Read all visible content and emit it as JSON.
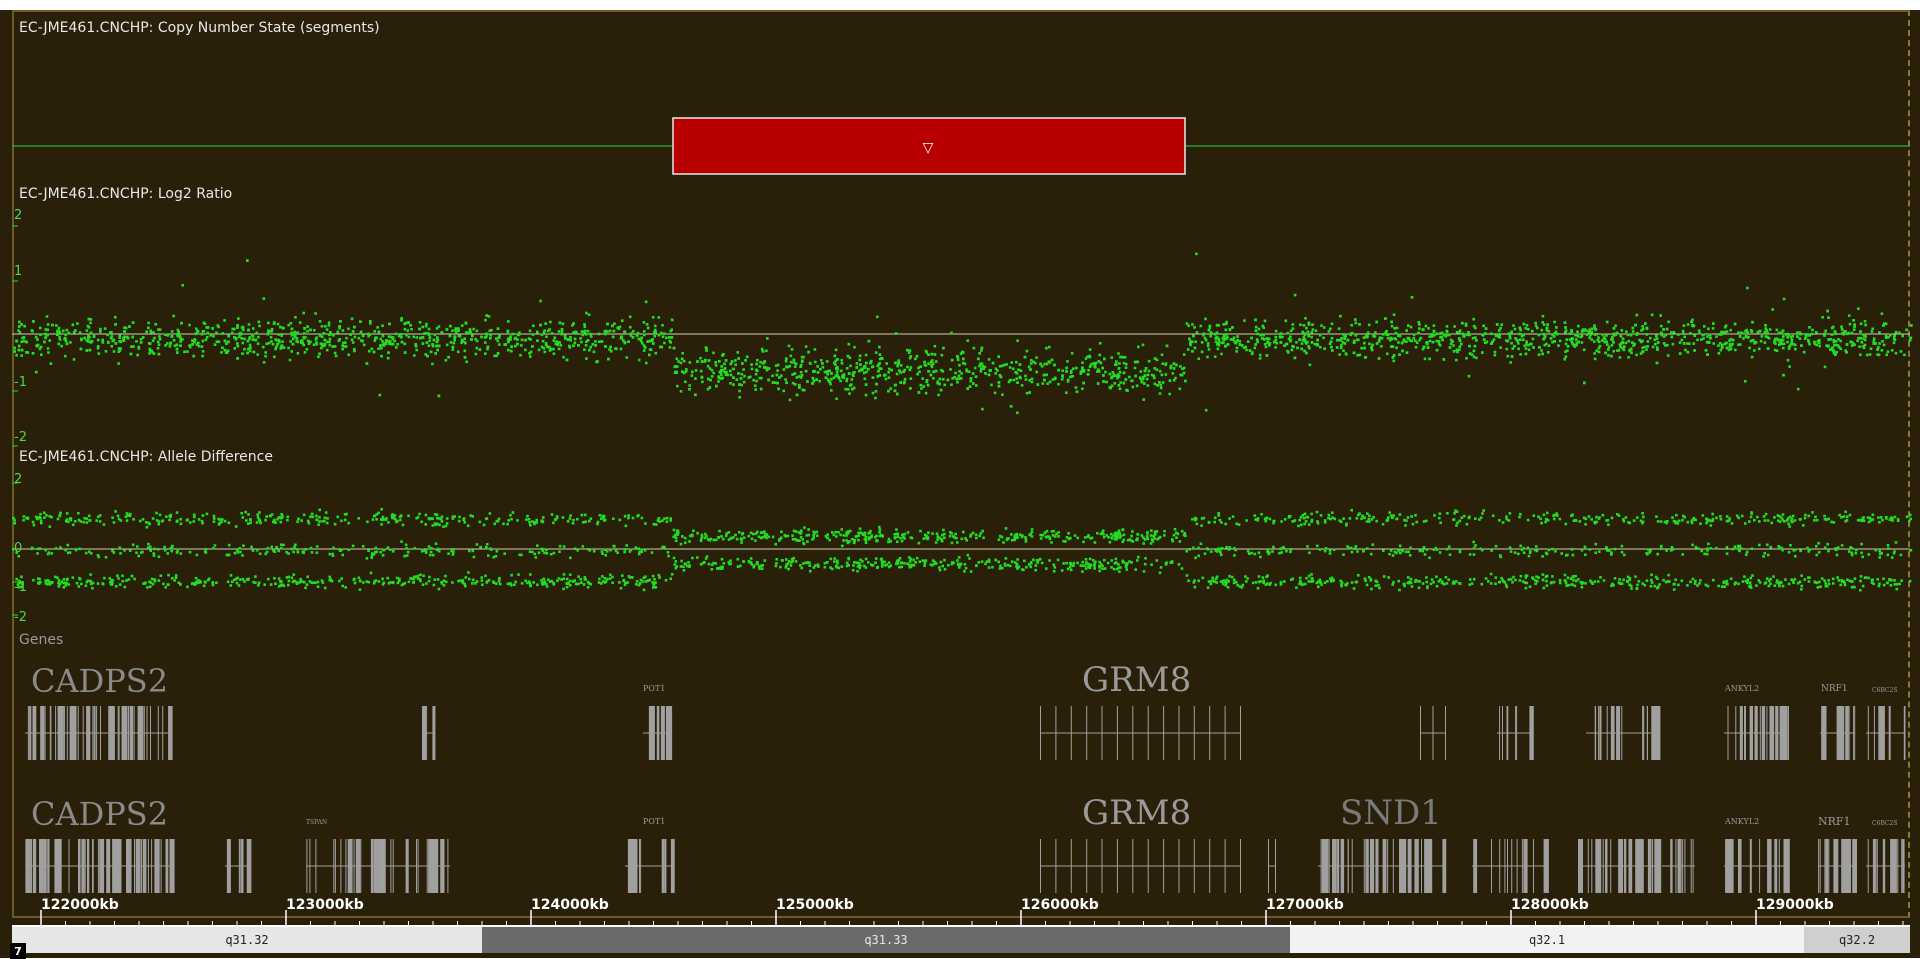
{
  "tracks": {
    "segments": {
      "label": "EC-JME461.CNCHP: Copy Number State (segments)",
      "marker": "▽"
    },
    "log2": {
      "label": "EC-JME461.CNCHP: Log2 Ratio",
      "ticks": [
        "2",
        "1",
        "-1",
        "-2"
      ]
    },
    "allele": {
      "label": "EC-JME461.CNCHP: Allele Difference",
      "ticks": [
        "2",
        "0",
        "-1",
        "-2"
      ]
    },
    "genes": {
      "label": "Genes"
    }
  },
  "genes": {
    "row1": {
      "cadps2": "CADPS2",
      "pot1": "POT1",
      "grm8": "GRM8",
      "ankyl2": "ANKYL2",
      "nrf1": "NRF1",
      "small": "C6BC2S"
    },
    "row2": {
      "cadps2": "CADPS2",
      "tspan": "TSPAN",
      "pot1": "POT1",
      "grm8": "GRM8",
      "snd1": "SND1",
      "ankyl2": "ANKYL2",
      "nrf1": "NRF1",
      "small": "C6BC2S"
    }
  },
  "ruler": {
    "labels": [
      "122000kb",
      "123000kb",
      "124000kb",
      "125000kb",
      "126000kb",
      "127000kb",
      "128000kb",
      "129000kb"
    ]
  },
  "ideogram": {
    "bands": [
      "q31.32",
      "q31.33",
      "q32.1",
      "q32.2"
    ]
  },
  "chromosome_badge": "7",
  "colors": {
    "background": "#2a200a",
    "points": "#22dd22",
    "segment_loss": "#b80000",
    "baseline": "#2bcf5a"
  }
}
